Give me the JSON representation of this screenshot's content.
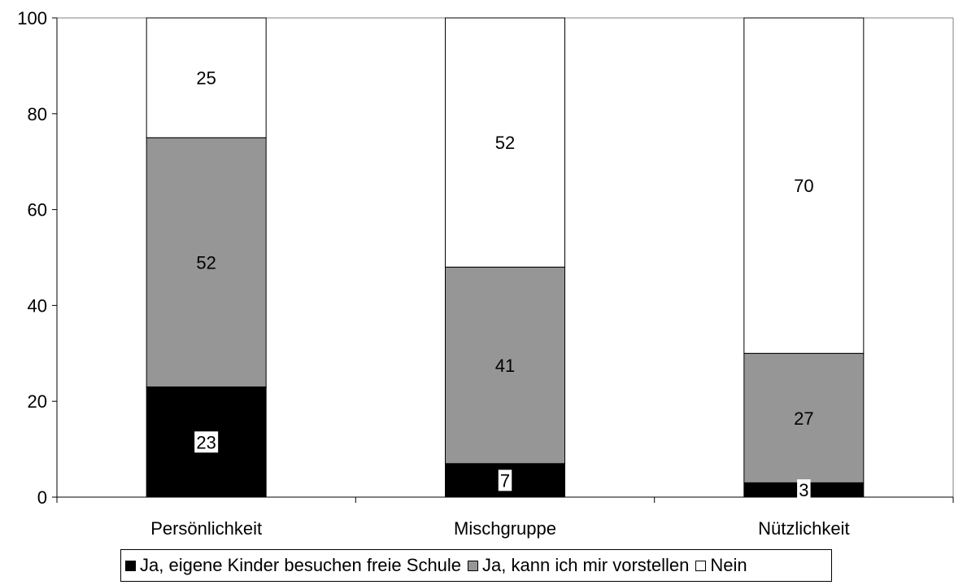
{
  "chart_data": {
    "type": "bar",
    "stacked": true,
    "categories": [
      "Persönlichkeit",
      "Mischgruppe",
      "Nützlichkeit"
    ],
    "series": [
      {
        "name": "Ja, eigene Kinder besuchen freie Schule",
        "values": [
          23,
          7,
          3
        ],
        "color": "#000000",
        "label_bg": "#ffffff"
      },
      {
        "name": "Ja, kann ich mir vorstellen",
        "values": [
          52,
          41,
          27
        ],
        "color": "#969696"
      },
      {
        "name": "Nein",
        "values": [
          25,
          52,
          70
        ],
        "color": "#ffffff"
      }
    ],
    "ylim": [
      0,
      100
    ],
    "yticks": [
      0,
      20,
      40,
      60,
      80,
      100
    ],
    "grid": false,
    "legend_position": "bottom",
    "title": "",
    "xlabel": "",
    "ylabel": ""
  }
}
